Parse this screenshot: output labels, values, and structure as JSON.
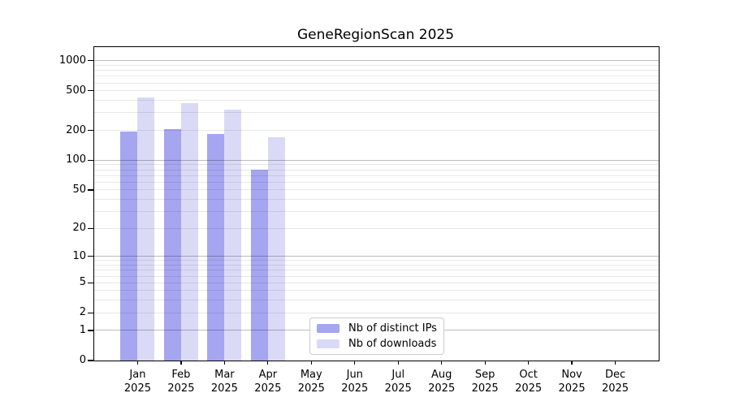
{
  "chart_data": {
    "type": "bar",
    "title": "GeneRegionScan 2025",
    "categories": [
      "Jan",
      "Feb",
      "Mar",
      "Apr",
      "May",
      "Jun",
      "Jul",
      "Aug",
      "Sep",
      "Oct",
      "Nov",
      "Dec"
    ],
    "year": "2025",
    "series": [
      {
        "name": "Nb of distinct IPs",
        "color": "#a5a5f0",
        "values": [
          195,
          205,
          185,
          80,
          0,
          0,
          0,
          0,
          0,
          0,
          0,
          0
        ]
      },
      {
        "name": "Nb of downloads",
        "color": "#dadaf6",
        "values": [
          427,
          377,
          326,
          171,
          0,
          0,
          0,
          0,
          0,
          0,
          0,
          0
        ]
      }
    ],
    "y_scale": "log10(1+x)",
    "ylim": [
      0,
      1369
    ],
    "y_ticks": [
      1000,
      500,
      200,
      100,
      50,
      20,
      10,
      5,
      2,
      1,
      0
    ],
    "grid": {
      "major_values": [
        1,
        10,
        100,
        1000
      ],
      "minor_values": [
        2,
        3,
        4,
        5,
        6,
        7,
        8,
        9,
        20,
        30,
        40,
        50,
        60,
        70,
        80,
        90,
        200,
        300,
        400,
        500,
        600,
        700,
        800,
        900
      ],
      "major_color": "#bdbdbd",
      "minor_color": "#e8e8e8"
    },
    "legend_position": "inside-bottom-center",
    "axis_color": "#000000",
    "background": "#ffffff"
  }
}
